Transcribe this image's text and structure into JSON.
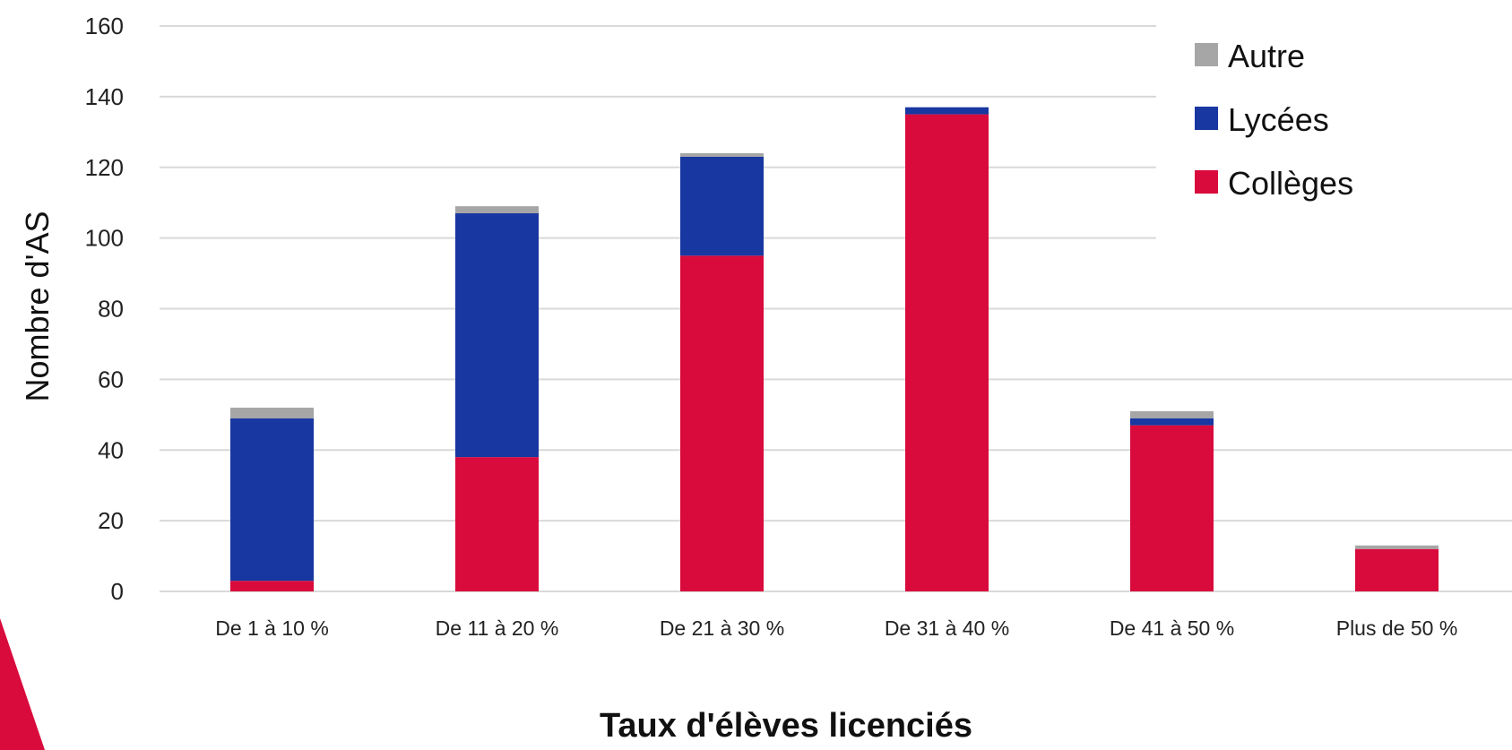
{
  "chart_data": {
    "type": "bar",
    "stacked": true,
    "categories": [
      "De 1 à 10 %",
      "De 11 à 20 %",
      "De 21 à 30 %",
      "De 31 à 40 %",
      "De 41 à 50 %",
      "Plus de 50 %"
    ],
    "series": [
      {
        "name": "Collèges",
        "color": "#d90a3c",
        "values": [
          3,
          38,
          95,
          135,
          47,
          12
        ]
      },
      {
        "name": "Lycées",
        "color": "#1837a0",
        "values": [
          46,
          69,
          28,
          2,
          2,
          0
        ]
      },
      {
        "name": "Autre",
        "color": "#a6a6a6",
        "values": [
          3,
          2,
          1,
          0,
          2,
          1
        ]
      }
    ],
    "legend_order": [
      "Autre",
      "Lycées",
      "Collèges"
    ],
    "legend_position": "top-right",
    "xlabel": "Taux d'élèves licenciés",
    "ylabel": "Nombre d'AS",
    "ylim": [
      0,
      160
    ],
    "yticks": [
      0,
      20,
      40,
      60,
      80,
      100,
      120,
      140,
      160
    ],
    "grid": true,
    "decoration_color": "#d90a3c"
  }
}
